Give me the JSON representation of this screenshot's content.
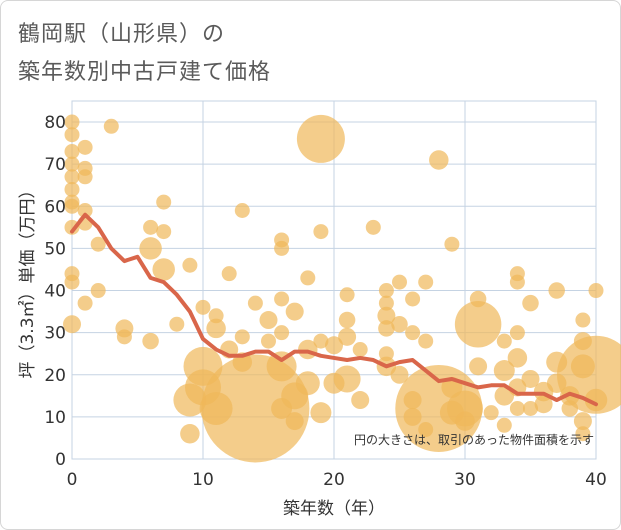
{
  "title_line1": "鶴岡駅（山形県）の",
  "title_line2": "築年数別中古戸建て価格",
  "chart_data": {
    "type": "scatter",
    "xlabel": "築年数（年）",
    "ylabel": "坪（3.3㎡）単価（万円）",
    "xlim": [
      0,
      40
    ],
    "ylim": [
      0,
      85
    ],
    "xticks": [
      0,
      10,
      20,
      30,
      40
    ],
    "yticks": [
      0,
      10,
      20,
      30,
      40,
      50,
      60,
      70,
      80
    ],
    "grid": true,
    "annotation": "円の大きさは、取引のあった物件面積を示す",
    "colors": {
      "bubble": "#f0b85a",
      "line": "#d9664a",
      "grid": "#c5d3e3"
    },
    "bubbles": [
      {
        "x": 0,
        "y": 80,
        "s": 1
      },
      {
        "x": 0,
        "y": 77,
        "s": 1
      },
      {
        "x": 0,
        "y": 73,
        "s": 1
      },
      {
        "x": 0,
        "y": 70,
        "s": 1
      },
      {
        "x": 0,
        "y": 67,
        "s": 1
      },
      {
        "x": 0,
        "y": 64,
        "s": 1
      },
      {
        "x": 0,
        "y": 61,
        "s": 1
      },
      {
        "x": 0,
        "y": 60,
        "s": 1
      },
      {
        "x": 0,
        "y": 55,
        "s": 1
      },
      {
        "x": 0,
        "y": 44,
        "s": 1
      },
      {
        "x": 0,
        "y": 42,
        "s": 1
      },
      {
        "x": 0,
        "y": 32,
        "s": 1.2
      },
      {
        "x": 1,
        "y": 74,
        "s": 1
      },
      {
        "x": 1,
        "y": 69,
        "s": 1
      },
      {
        "x": 1,
        "y": 67,
        "s": 1
      },
      {
        "x": 1,
        "y": 59,
        "s": 1
      },
      {
        "x": 1,
        "y": 56,
        "s": 1
      },
      {
        "x": 1,
        "y": 37,
        "s": 1
      },
      {
        "x": 2,
        "y": 51,
        "s": 1
      },
      {
        "x": 2,
        "y": 40,
        "s": 1
      },
      {
        "x": 3,
        "y": 79,
        "s": 1
      },
      {
        "x": 4,
        "y": 31,
        "s": 1.2
      },
      {
        "x": 4,
        "y": 29,
        "s": 1
      },
      {
        "x": 6,
        "y": 55,
        "s": 1
      },
      {
        "x": 6,
        "y": 50,
        "s": 1.5
      },
      {
        "x": 6,
        "y": 28,
        "s": 1.1
      },
      {
        "x": 7,
        "y": 61,
        "s": 1
      },
      {
        "x": 7,
        "y": 54,
        "s": 1
      },
      {
        "x": 7,
        "y": 45,
        "s": 1.5
      },
      {
        "x": 8,
        "y": 32,
        "s": 1
      },
      {
        "x": 9,
        "y": 46,
        "s": 1
      },
      {
        "x": 9,
        "y": 14,
        "s": 2.2
      },
      {
        "x": 9,
        "y": 6,
        "s": 1.3
      },
      {
        "x": 10,
        "y": 36,
        "s": 1
      },
      {
        "x": 10,
        "y": 22,
        "s": 2.6
      },
      {
        "x": 10,
        "y": 17,
        "s": 2.4
      },
      {
        "x": 11,
        "y": 34,
        "s": 1
      },
      {
        "x": 11,
        "y": 31,
        "s": 1.3
      },
      {
        "x": 11,
        "y": 12,
        "s": 2.2
      },
      {
        "x": 12,
        "y": 44,
        "s": 1
      },
      {
        "x": 12,
        "y": 26,
        "s": 1.2
      },
      {
        "x": 13,
        "y": 59,
        "s": 1
      },
      {
        "x": 13,
        "y": 29,
        "s": 1
      },
      {
        "x": 13,
        "y": 23,
        "s": 1.3
      },
      {
        "x": 14,
        "y": 12,
        "s": 7.2
      },
      {
        "x": 14,
        "y": 37,
        "s": 1
      },
      {
        "x": 15,
        "y": 33,
        "s": 1.2
      },
      {
        "x": 15,
        "y": 28,
        "s": 1
      },
      {
        "x": 16,
        "y": 52,
        "s": 1
      },
      {
        "x": 16,
        "y": 50,
        "s": 1
      },
      {
        "x": 16,
        "y": 38,
        "s": 1
      },
      {
        "x": 16,
        "y": 30,
        "s": 1
      },
      {
        "x": 16,
        "y": 22,
        "s": 2
      },
      {
        "x": 16,
        "y": 12,
        "s": 1.4
      },
      {
        "x": 17,
        "y": 35,
        "s": 1.2
      },
      {
        "x": 17,
        "y": 15,
        "s": 1.8
      },
      {
        "x": 17,
        "y": 9,
        "s": 1.2
      },
      {
        "x": 18,
        "y": 43,
        "s": 1
      },
      {
        "x": 18,
        "y": 26,
        "s": 1.3
      },
      {
        "x": 18,
        "y": 18,
        "s": 1.6
      },
      {
        "x": 19,
        "y": 76,
        "s": 3.2
      },
      {
        "x": 19,
        "y": 54,
        "s": 1
      },
      {
        "x": 19,
        "y": 28,
        "s": 1
      },
      {
        "x": 19,
        "y": 11,
        "s": 1.4
      },
      {
        "x": 20,
        "y": 27,
        "s": 1.2
      },
      {
        "x": 20,
        "y": 18,
        "s": 1.4
      },
      {
        "x": 21,
        "y": 39,
        "s": 1
      },
      {
        "x": 21,
        "y": 33,
        "s": 1.1
      },
      {
        "x": 21,
        "y": 29,
        "s": 1.2
      },
      {
        "x": 21,
        "y": 19,
        "s": 1.8
      },
      {
        "x": 22,
        "y": 26,
        "s": 1
      },
      {
        "x": 22,
        "y": 14,
        "s": 1.2
      },
      {
        "x": 23,
        "y": 55,
        "s": 1
      },
      {
        "x": 24,
        "y": 40,
        "s": 1
      },
      {
        "x": 24,
        "y": 37,
        "s": 1
      },
      {
        "x": 24,
        "y": 34,
        "s": 1.2
      },
      {
        "x": 24,
        "y": 31,
        "s": 1.1
      },
      {
        "x": 24,
        "y": 25,
        "s": 1
      },
      {
        "x": 24,
        "y": 22,
        "s": 1.3
      },
      {
        "x": 25,
        "y": 42,
        "s": 1
      },
      {
        "x": 25,
        "y": 32,
        "s": 1.1
      },
      {
        "x": 25,
        "y": 20,
        "s": 1.2
      },
      {
        "x": 26,
        "y": 38,
        "s": 1
      },
      {
        "x": 26,
        "y": 30,
        "s": 1
      },
      {
        "x": 26,
        "y": 14,
        "s": 1.2
      },
      {
        "x": 26,
        "y": 10,
        "s": 1.2
      },
      {
        "x": 27,
        "y": 42,
        "s": 1
      },
      {
        "x": 27,
        "y": 28,
        "s": 1
      },
      {
        "x": 27,
        "y": 7,
        "s": 1
      },
      {
        "x": 28,
        "y": 71,
        "s": 1.3
      },
      {
        "x": 28,
        "y": 12,
        "s": 5.8
      },
      {
        "x": 29,
        "y": 51,
        "s": 1
      },
      {
        "x": 29,
        "y": 17,
        "s": 1.4
      },
      {
        "x": 29,
        "y": 11,
        "s": 1.6
      },
      {
        "x": 30,
        "y": 12,
        "s": 2.4
      },
      {
        "x": 30,
        "y": 9,
        "s": 1.3
      },
      {
        "x": 31,
        "y": 38,
        "s": 1.1
      },
      {
        "x": 31,
        "y": 32,
        "s": 3.1
      },
      {
        "x": 31,
        "y": 22,
        "s": 1.2
      },
      {
        "x": 32,
        "y": 11,
        "s": 1
      },
      {
        "x": 33,
        "y": 28,
        "s": 1
      },
      {
        "x": 33,
        "y": 21,
        "s": 1.4
      },
      {
        "x": 33,
        "y": 15,
        "s": 1.3
      },
      {
        "x": 33,
        "y": 8,
        "s": 1
      },
      {
        "x": 34,
        "y": 44,
        "s": 1
      },
      {
        "x": 34,
        "y": 42,
        "s": 1
      },
      {
        "x": 34,
        "y": 30,
        "s": 1
      },
      {
        "x": 34,
        "y": 24,
        "s": 1.3
      },
      {
        "x": 34,
        "y": 17,
        "s": 1.2
      },
      {
        "x": 34,
        "y": 12,
        "s": 1
      },
      {
        "x": 35,
        "y": 37,
        "s": 1.1
      },
      {
        "x": 35,
        "y": 19,
        "s": 1.2
      },
      {
        "x": 35,
        "y": 12,
        "s": 1
      },
      {
        "x": 36,
        "y": 16,
        "s": 1.3
      },
      {
        "x": 36,
        "y": 13,
        "s": 1.2
      },
      {
        "x": 37,
        "y": 40,
        "s": 1.1
      },
      {
        "x": 37,
        "y": 23,
        "s": 1.4
      },
      {
        "x": 37,
        "y": 18,
        "s": 1.3
      },
      {
        "x": 38,
        "y": 15,
        "s": 1.3
      },
      {
        "x": 38,
        "y": 12,
        "s": 1.1
      },
      {
        "x": 39,
        "y": 33,
        "s": 1
      },
      {
        "x": 39,
        "y": 28,
        "s": 1.2
      },
      {
        "x": 39,
        "y": 22,
        "s": 1.6
      },
      {
        "x": 39,
        "y": 9,
        "s": 1.2
      },
      {
        "x": 39,
        "y": 6,
        "s": 1
      },
      {
        "x": 40,
        "y": 40,
        "s": 1
      },
      {
        "x": 40,
        "y": 20,
        "s": 5.2
      },
      {
        "x": 40,
        "y": 14,
        "s": 1.5
      }
    ],
    "trend": {
      "x": [
        0,
        1,
        2,
        3,
        4,
        5,
        6,
        7,
        8,
        9,
        10,
        11,
        12,
        13,
        14,
        15,
        16,
        17,
        18,
        19,
        20,
        21,
        22,
        23,
        24,
        25,
        26,
        27,
        28,
        29,
        30,
        31,
        32,
        33,
        34,
        35,
        36,
        37,
        38,
        39,
        40
      ],
      "y": [
        54,
        58,
        55,
        50,
        47,
        48,
        43,
        42,
        39,
        35,
        28.5,
        26,
        24.5,
        24.5,
        25.5,
        25.5,
        23.5,
        25.5,
        25.5,
        24.5,
        24,
        23.5,
        24,
        23.5,
        22,
        23,
        23.5,
        21,
        18.5,
        19,
        18,
        17,
        17.5,
        17.5,
        15.5,
        15.5,
        15.5,
        14,
        15.5,
        14.5,
        13
      ]
    }
  }
}
